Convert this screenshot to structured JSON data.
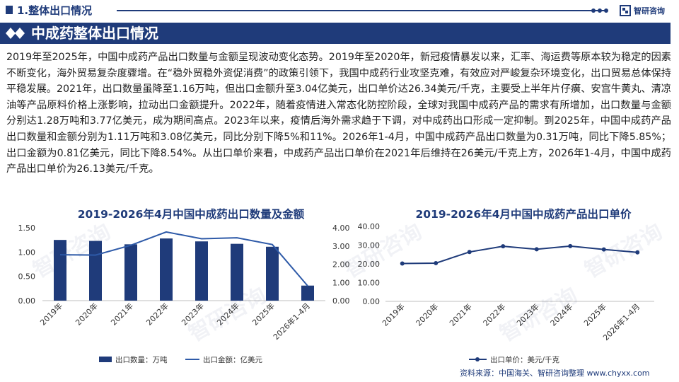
{
  "header": {
    "section_label": "1.整体出口情况",
    "logo_text": "智研咨询"
  },
  "banner": {
    "title": "中成药整体出口情况"
  },
  "body_text": "2019年至2025年，中国中成药产品出口数量与金额呈现波动变化态势。2019年至2020年，新冠疫情暴发以来，汇率、海运费等原本较为稳定的因素不断变化，海外贸易复杂度骤增。在“稳外贸稳外资促消费”的政策引领下，我国中成药行业攻坚克难，有效应对严峻复杂环境变化，出口贸易总体保持平稳发展。2021年，出口数量虽降至1.16万吨，但出口金额升至3.04亿美元，出口单价达26.34美元/千克，主要受上半年片仔癀、安宫牛黄丸、清凉油等产品原料价格上涨影响，拉动出口金额提升。2022年，随着疫情进入常态化防控阶段，全球对我国中成药产品的需求有所增加，出口数量与金额分别达1.28万吨和3.77亿美元，成为期间高点。2023年以来，疫情后海外需求趋于下调，对中成药出口形成一定抑制。到2025年，中国中成药产品出口数量和金额分别为1.11万吨和3.08亿美元，同比分别下降5%和11%。2026年1-4月，中国中成药产品出口数量为0.31万吨，同比下降5.85%；出口金额为0.81亿美元，同比下降8.54%。从出口单价来看，中成药产品出口单价在2021年后维持在26美元/千克上方，2026年1-4月，中国中成药产品出口单价为26.13美元/千克。",
  "footer": {
    "source": "资料来源：中国海关、智研咨询整理 www.chyxx.com"
  },
  "watermark_text": "智研咨询",
  "colors": {
    "navy": "#1f3b7a",
    "bar": "#1f3b7a",
    "line_amount": "#2e5aa8",
    "price_line": "#1f3b7a",
    "grid": "#d9d9d9"
  },
  "chart_data": [
    {
      "type": "bar",
      "title": "2019-2026年4月中国中成药出口数量及金额",
      "categories": [
        "2019年",
        "2020年",
        "2021年",
        "2022年",
        "2023年",
        "2024年",
        "2025年",
        "2026年1-4月"
      ],
      "series": [
        {
          "name": "出口数量：万吨",
          "kind": "bar",
          "axis": "left",
          "values": [
            1.25,
            1.23,
            1.16,
            1.28,
            1.22,
            1.17,
            1.11,
            0.31
          ]
        },
        {
          "name": "出口金额：亿美元",
          "kind": "line",
          "axis": "right",
          "values": [
            2.52,
            2.5,
            3.04,
            3.77,
            3.4,
            3.45,
            3.08,
            0.81
          ]
        }
      ],
      "ylim_left": [
        0,
        1.5
      ],
      "yticks_left": [
        "0.00",
        "0.50",
        "1.00",
        "1.50"
      ],
      "ylim_right": [
        0,
        4
      ],
      "yticks_right": [
        "0.00",
        "1.00",
        "2.00",
        "3.00",
        "4.00"
      ],
      "grid": false,
      "legend_position": "bottom"
    },
    {
      "type": "line",
      "title": "2019-2026年4月中国中成药产品出口单价",
      "categories": [
        "2019年",
        "2020年",
        "2021年",
        "2022年",
        "2023年",
        "2024年",
        "2025年",
        "2026年1-4月"
      ],
      "series": [
        {
          "name": "出口单价：美元/千克",
          "values": [
            20.2,
            20.4,
            26.34,
            29.4,
            27.8,
            29.5,
            27.7,
            26.13
          ]
        }
      ],
      "ylim": [
        0,
        40
      ],
      "yticks": [
        "0.00",
        "10.00",
        "20.00",
        "30.00",
        "40.00"
      ],
      "grid": false,
      "legend_position": "bottom"
    }
  ]
}
